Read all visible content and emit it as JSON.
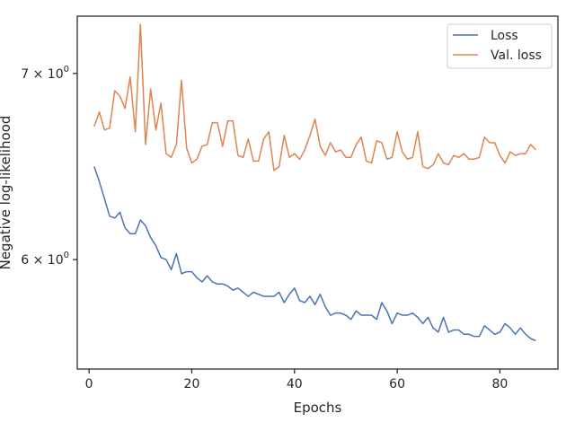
{
  "chart_data": {
    "type": "line",
    "title": "",
    "xlabel": "Epochs",
    "ylabel": "Negative log-likelihood",
    "yscale": "log",
    "xlim": [
      -2.3,
      91.3
    ],
    "ylim": [
      5.48,
      7.34
    ],
    "xticks": [
      0,
      20,
      40,
      60,
      80
    ],
    "xtick_labels": [
      "0",
      "20",
      "40",
      "60",
      "80"
    ],
    "yticks": [
      6,
      7
    ],
    "ytick_labels": [
      {
        "mantissa": "6",
        "times": " × ",
        "base": "10",
        "exp": "0"
      },
      {
        "mantissa": "7",
        "times": " × ",
        "base": "10",
        "exp": "0"
      }
    ],
    "grid": false,
    "legend_position": "top-right",
    "x": [
      1,
      2,
      3,
      4,
      5,
      6,
      7,
      8,
      9,
      10,
      11,
      12,
      13,
      14,
      15,
      16,
      17,
      18,
      19,
      20,
      21,
      22,
      23,
      24,
      25,
      26,
      27,
      28,
      29,
      30,
      31,
      32,
      33,
      34,
      35,
      36,
      37,
      38,
      39,
      40,
      41,
      42,
      43,
      44,
      45,
      46,
      47,
      48,
      49,
      50,
      51,
      52,
      53,
      54,
      55,
      56,
      57,
      58,
      59,
      60,
      61,
      62,
      63,
      64,
      65,
      66,
      67,
      68,
      69,
      70,
      71,
      72,
      73,
      74,
      75,
      76,
      77,
      78,
      79,
      80,
      81,
      82,
      83,
      84,
      85,
      86,
      87
    ],
    "series": [
      {
        "name": "Loss",
        "color": "#4c72b0",
        "values": [
          6.48,
          6.4,
          6.31,
          6.22,
          6.21,
          6.24,
          6.16,
          6.13,
          6.13,
          6.2,
          6.17,
          6.11,
          6.07,
          6.01,
          6.0,
          5.95,
          6.03,
          5.93,
          5.94,
          5.94,
          5.91,
          5.89,
          5.92,
          5.89,
          5.88,
          5.88,
          5.87,
          5.85,
          5.86,
          5.84,
          5.82,
          5.84,
          5.83,
          5.82,
          5.82,
          5.82,
          5.84,
          5.79,
          5.83,
          5.86,
          5.8,
          5.79,
          5.82,
          5.78,
          5.83,
          5.77,
          5.73,
          5.74,
          5.74,
          5.73,
          5.71,
          5.75,
          5.73,
          5.73,
          5.73,
          5.71,
          5.79,
          5.75,
          5.69,
          5.74,
          5.73,
          5.73,
          5.74,
          5.72,
          5.69,
          5.72,
          5.67,
          5.65,
          5.72,
          5.65,
          5.66,
          5.66,
          5.64,
          5.64,
          5.63,
          5.63,
          5.68,
          5.66,
          5.64,
          5.65,
          5.69,
          5.67,
          5.64,
          5.67,
          5.64,
          5.62,
          5.61
        ]
      },
      {
        "name": "Val. loss",
        "color": "#dd8452",
        "values": [
          6.7,
          6.78,
          6.68,
          6.69,
          6.9,
          6.87,
          6.8,
          6.98,
          6.67,
          7.29,
          6.6,
          6.91,
          6.68,
          6.83,
          6.55,
          6.53,
          6.6,
          6.96,
          6.58,
          6.5,
          6.52,
          6.59,
          6.6,
          6.72,
          6.72,
          6.59,
          6.73,
          6.73,
          6.54,
          6.53,
          6.63,
          6.51,
          6.51,
          6.63,
          6.67,
          6.46,
          6.48,
          6.65,
          6.53,
          6.55,
          6.52,
          6.57,
          6.65,
          6.74,
          6.59,
          6.54,
          6.61,
          6.56,
          6.57,
          6.53,
          6.53,
          6.6,
          6.64,
          6.51,
          6.5,
          6.62,
          6.61,
          6.52,
          6.53,
          6.67,
          6.56,
          6.52,
          6.53,
          6.67,
          6.48,
          6.47,
          6.49,
          6.55,
          6.5,
          6.49,
          6.54,
          6.53,
          6.55,
          6.52,
          6.52,
          6.53,
          6.64,
          6.61,
          6.61,
          6.54,
          6.5,
          6.56,
          6.54,
          6.55,
          6.55,
          6.6,
          6.57
        ]
      }
    ]
  }
}
